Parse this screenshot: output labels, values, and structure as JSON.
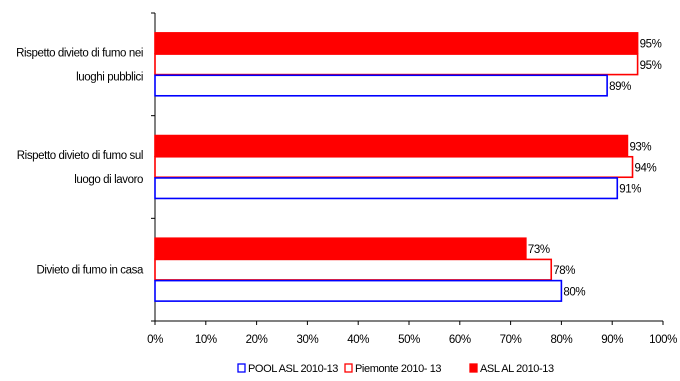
{
  "chart_data": {
    "type": "bar",
    "orientation": "horizontal",
    "categories": [
      [
        "Rispetto divieto di fumo nei",
        "luoghi pubblici"
      ],
      [
        "Rispetto divieto di fumo sul",
        "luogo di lavoro"
      ],
      [
        "Divieto di fumo in casa"
      ]
    ],
    "series": [
      {
        "name": "ASL AL 2010-13",
        "values": [
          95,
          93,
          73
        ],
        "value_labels": [
          "95%",
          "93%",
          "73%"
        ],
        "color": "#ff0000",
        "fill": "#ff0000"
      },
      {
        "name": "Piemonte 2010- 13",
        "values": [
          95,
          94,
          78
        ],
        "value_labels": [
          "95%",
          "94%",
          "78%"
        ],
        "color": "#ff0000",
        "fill": "#ffffff"
      },
      {
        "name": "POOL ASL 2010-13",
        "values": [
          89,
          91,
          80
        ],
        "value_labels": [
          "89%",
          "91%",
          "80%"
        ],
        "color": "#0000ff",
        "fill": "#ffffff"
      }
    ],
    "xlim": [
      0,
      100
    ],
    "xticks": [
      "0%",
      "10%",
      "20%",
      "30%",
      "40%",
      "50%",
      "60%",
      "70%",
      "80%",
      "90%",
      "100%"
    ],
    "title": "",
    "xlabel": "",
    "ylabel": "",
    "grid": false,
    "legend": {
      "position": "bottom",
      "order": [
        "POOL ASL 2010-13",
        "Piemonte 2010- 13",
        "ASL AL 2010-13"
      ]
    }
  }
}
